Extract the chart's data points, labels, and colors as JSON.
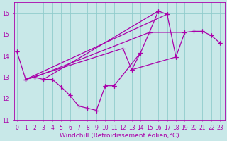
{
  "xlabel": "Windchill (Refroidissement éolien,°C)",
  "line_color": "#aa00aa",
  "marker": "+",
  "markersize": 4,
  "linewidth": 0.9,
  "xlim": [
    -0.3,
    23.5
  ],
  "ylim": [
    11,
    16.5
  ],
  "yticks": [
    11,
    12,
    13,
    14,
    15,
    16
  ],
  "xticks": [
    0,
    1,
    2,
    3,
    4,
    5,
    6,
    7,
    8,
    9,
    10,
    11,
    12,
    13,
    14,
    15,
    16,
    17,
    18,
    19,
    20,
    21,
    22,
    23
  ],
  "grid_color": "#90cccc",
  "bg_color": "#c8e8e8",
  "tick_fontsize": 5.5,
  "xlabel_fontsize": 6.5,
  "series": [
    [
      0,
      14.2
    ],
    [
      1,
      12.9
    ],
    [
      2,
      13.0
    ],
    [
      3,
      12.9
    ],
    [
      4,
      12.9
    ],
    [
      5,
      12.55
    ],
    [
      6,
      12.15
    ],
    [
      7,
      11.65
    ],
    [
      8,
      11.55
    ],
    [
      9,
      11.45
    ],
    [
      10,
      12.6
    ],
    [
      11,
      12.6
    ],
    [
      12,
      14.35
    ],
    [
      13,
      13.35
    ],
    [
      14,
      14.15
    ],
    [
      15,
      15.1
    ],
    [
      16,
      16.1
    ],
    [
      17,
      15.95
    ],
    [
      18,
      13.95
    ],
    [
      19,
      15.1
    ],
    [
      20,
      15.15
    ],
    [
      21,
      15.15
    ],
    [
      22,
      14.95
    ],
    [
      23,
      14.6
    ]
  ],
  "segments": [
    [
      [
        0,
        14.2
      ],
      [
        1,
        12.9
      ]
    ],
    [
      [
        1,
        12.9
      ],
      [
        2,
        13.0
      ],
      [
        3,
        12.9
      ],
      [
        4,
        12.9
      ]
    ],
    [
      [
        4,
        12.9
      ],
      [
        5,
        12.55
      ],
      [
        6,
        12.15
      ],
      [
        7,
        11.65
      ],
      [
        8,
        11.55
      ],
      [
        9,
        11.45
      ]
    ],
    [
      [
        9,
        11.45
      ],
      [
        10,
        12.6
      ],
      [
        11,
        12.6
      ]
    ],
    [
      [
        1,
        12.9
      ],
      [
        12,
        14.35
      ],
      [
        13,
        13.35
      ],
      [
        14,
        14.15
      ],
      [
        15,
        15.1
      ],
      [
        16,
        16.1
      ]
    ],
    [
      [
        1,
        12.9
      ],
      [
        17,
        15.95
      ],
      [
        18,
        13.95
      ]
    ],
    [
      [
        2,
        13.0
      ],
      [
        15,
        15.1
      ],
      [
        19,
        15.1
      ],
      [
        20,
        15.15
      ],
      [
        21,
        15.15
      ],
      [
        22,
        14.95
      ],
      [
        23,
        14.6
      ]
    ],
    [
      [
        3,
        12.9
      ],
      [
        16,
        16.1
      ],
      [
        17,
        15.95
      ]
    ],
    [
      [
        11,
        12.6
      ],
      [
        14,
        14.15
      ]
    ],
    [
      [
        13,
        13.35
      ],
      [
        18,
        13.95
      ],
      [
        19,
        15.1
      ]
    ]
  ]
}
